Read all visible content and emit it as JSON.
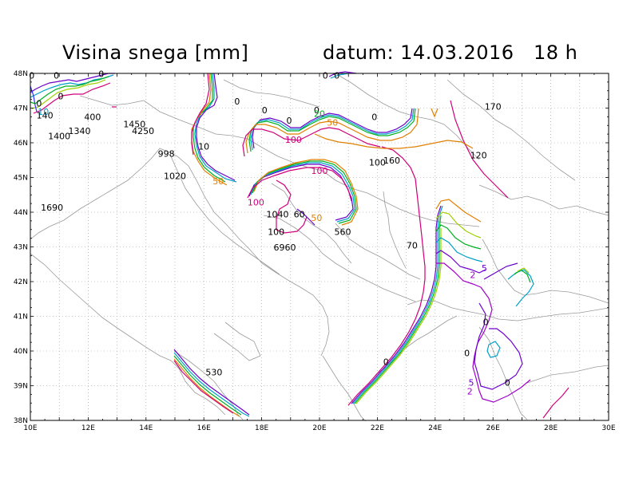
{
  "title": {
    "left": "Visina snega [mm]",
    "right": "datum: 14.03.2016   18 h"
  },
  "axes": {
    "lon_labels": [
      "10E",
      "12E",
      "14E",
      "16E",
      "18E",
      "20E",
      "22E",
      "24E",
      "26E",
      "28E",
      "30E"
    ],
    "lat_labels": [
      "38N",
      "39N",
      "40N",
      "41N",
      "42N",
      "43N",
      "44N",
      "45N",
      "46N",
      "47N",
      "48N"
    ]
  },
  "colors": {
    "frame": "#000000",
    "coast": "#9a9a9a",
    "grid": "#9a9a9a",
    "level_0": "#6a00c8",
    "level_2": "#a000c8",
    "level_5": "#6f00d0",
    "level_10": "#00a0c8",
    "level_20": "#00b020",
    "level_30": "#a0d000",
    "level_50": "#e08000",
    "level_100": "#d0007a"
  },
  "contour_labels": [
    {
      "text": "0",
      "lon": 10.05,
      "lat": 47.85,
      "color": "#000000"
    },
    {
      "text": "0",
      "lon": 10.9,
      "lat": 47.85,
      "color": "#000000"
    },
    {
      "text": "0",
      "lon": 12.45,
      "lat": 47.9,
      "color": "#000000"
    },
    {
      "text": "0",
      "lon": 10.3,
      "lat": 47.05,
      "color": "#000000"
    },
    {
      "text": "0",
      "lon": 11.05,
      "lat": 47.25,
      "color": "#000000"
    },
    {
      "text": "10",
      "lon": 10.45,
      "lat": 46.8,
      "color": "#00a0c8"
    },
    {
      "text": "0",
      "lon": 17.15,
      "lat": 47.1,
      "color": "#000000"
    },
    {
      "text": "0",
      "lon": 18.1,
      "lat": 46.85,
      "color": "#000000"
    },
    {
      "text": "0",
      "lon": 18.95,
      "lat": 46.55,
      "color": "#000000"
    },
    {
      "text": "0",
      "lon": 19.9,
      "lat": 46.85,
      "color": "#000000"
    },
    {
      "text": "0",
      "lon": 20.2,
      "lat": 47.85,
      "color": "#000000"
    },
    {
      "text": "0",
      "lon": 20.6,
      "lat": 47.85,
      "color": "#000000"
    },
    {
      "text": "0",
      "lon": 21.9,
      "lat": 46.65,
      "color": "#000000"
    },
    {
      "text": "20",
      "lon": 20.0,
      "lat": 46.75,
      "color": "#00b020"
    },
    {
      "text": "50",
      "lon": 20.45,
      "lat": 46.5,
      "color": "#e08000"
    },
    {
      "text": "10",
      "lon": 16.0,
      "lat": 45.8,
      "color": "#000000"
    },
    {
      "text": "50",
      "lon": 16.5,
      "lat": 44.8,
      "color": "#e08000"
    },
    {
      "text": "100",
      "lon": 17.8,
      "lat": 44.2,
      "color": "#d0007a"
    },
    {
      "text": "100",
      "lon": 19.1,
      "lat": 46.0,
      "color": "#d0007a"
    },
    {
      "text": "100",
      "lon": 20.0,
      "lat": 45.1,
      "color": "#d0007a"
    },
    {
      "text": "50",
      "lon": 19.9,
      "lat": 43.75,
      "color": "#e08000"
    },
    {
      "text": "60",
      "lon": 19.3,
      "lat": 43.85,
      "color": "#000000"
    },
    {
      "text": "100",
      "lon": 22.0,
      "lat": 45.35,
      "color": "#000000"
    },
    {
      "text": "160",
      "lon": 22.5,
      "lat": 45.4,
      "color": "#000000"
    },
    {
      "text": "170",
      "lon": 26.0,
      "lat": 46.95,
      "color": "#000000"
    },
    {
      "text": "120",
      "lon": 25.5,
      "lat": 45.55,
      "color": "#000000"
    },
    {
      "text": "140",
      "lon": 10.5,
      "lat": 46.7,
      "color": "#000000"
    },
    {
      "text": "400",
      "lon": 12.15,
      "lat": 46.65,
      "color": "#000000"
    },
    {
      "text": "1450",
      "lon": 13.6,
      "lat": 46.45,
      "color": "#000000"
    },
    {
      "text": "4250",
      "lon": 13.9,
      "lat": 46.25,
      "color": "#000000"
    },
    {
      "text": "1340",
      "lon": 11.7,
      "lat": 46.25,
      "color": "#000000"
    },
    {
      "text": "1400",
      "lon": 11.0,
      "lat": 46.1,
      "color": "#000000"
    },
    {
      "text": "998",
      "lon": 14.7,
      "lat": 45.6,
      "color": "#000000"
    },
    {
      "text": "1020",
      "lon": 15.0,
      "lat": 44.95,
      "color": "#000000"
    },
    {
      "text": "1690",
      "lon": 10.75,
      "lat": 44.05,
      "color": "#000000"
    },
    {
      "text": "1040",
      "lon": 18.55,
      "lat": 43.85,
      "color": "#000000"
    },
    {
      "text": "100",
      "lon": 18.5,
      "lat": 43.35,
      "color": "#000000"
    },
    {
      "text": "560",
      "lon": 20.8,
      "lat": 43.35,
      "color": "#000000"
    },
    {
      "text": "6960",
      "lon": 18.8,
      "lat": 42.9,
      "color": "#000000"
    },
    {
      "text": "70",
      "lon": 23.2,
      "lat": 42.95,
      "color": "#000000"
    },
    {
      "text": "5",
      "lon": 25.7,
      "lat": 42.3,
      "color": "#6f00d0"
    },
    {
      "text": "2",
      "lon": 25.3,
      "lat": 42.1,
      "color": "#a000c8"
    },
    {
      "text": "0",
      "lon": 25.75,
      "lat": 40.75,
      "color": "#000000"
    },
    {
      "text": "0",
      "lon": 25.1,
      "lat": 39.85,
      "color": "#000000"
    },
    {
      "text": "5",
      "lon": 25.25,
      "lat": 39.0,
      "color": "#6f00d0"
    },
    {
      "text": "2",
      "lon": 25.2,
      "lat": 38.75,
      "color": "#a000c8"
    },
    {
      "text": "0",
      "lon": 26.5,
      "lat": 39.0,
      "color": "#000000"
    },
    {
      "text": "0",
      "lon": 22.3,
      "lat": 39.6,
      "color": "#000000"
    },
    {
      "text": "530",
      "lon": 16.35,
      "lat": 39.3,
      "color": "#000000"
    }
  ]
}
